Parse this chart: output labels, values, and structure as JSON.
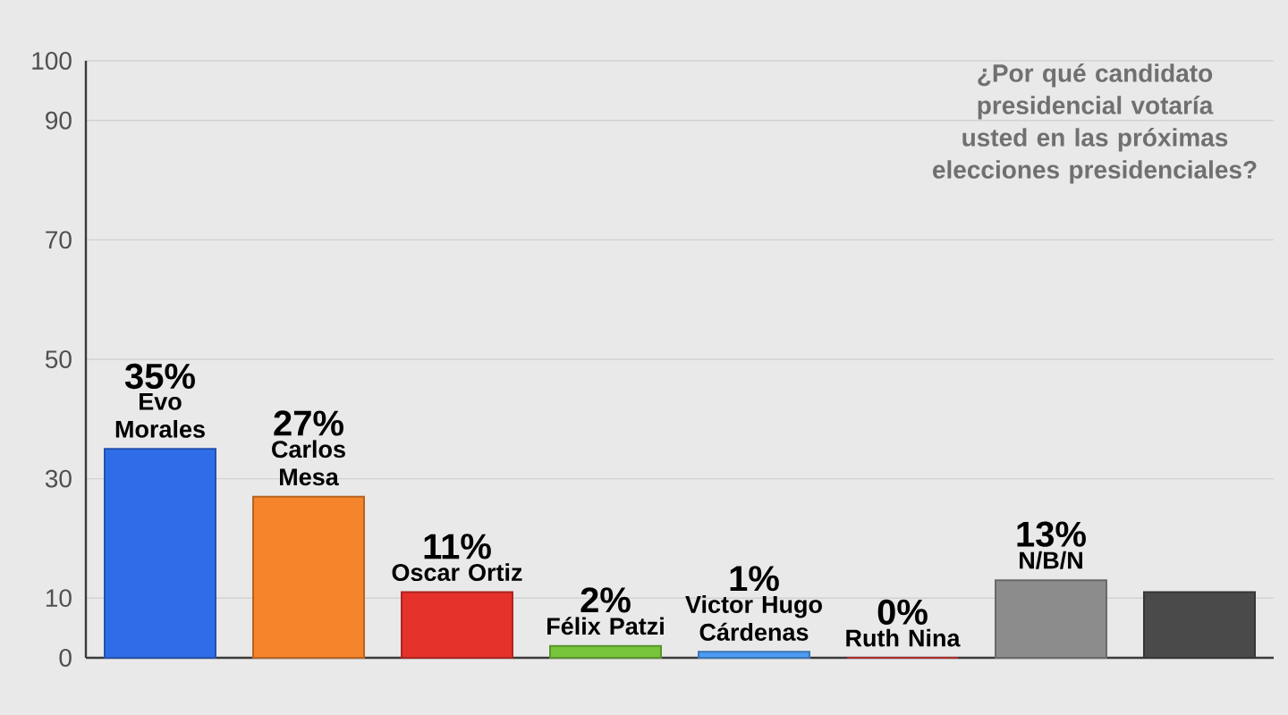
{
  "chart_data": {
    "type": "bar",
    "title": "¿Por qué candidato presidencial votaría usted en las próximas elecciones presidenciales?",
    "categories": [
      "Evo Morales",
      "Carlos Mesa",
      "Oscar Ortiz",
      "Félix Patzi",
      "Victor Hugo Cárdenas",
      "Ruth Nina",
      "N/B/N",
      null
    ],
    "values": [
      35,
      27,
      11,
      2,
      1,
      0,
      13,
      11
    ],
    "value_labels": [
      "35%",
      "27%",
      "11%",
      "2%",
      "1%",
      "0%",
      "13%",
      null
    ],
    "colors": [
      "#2f6de8",
      "#f5842a",
      "#e5322b",
      "#78c43a",
      "#4d9cf2",
      "#e83a3a",
      "#8c8c8c",
      "#4a4a4a"
    ],
    "ylim": [
      0,
      100
    ],
    "yticks": [
      0,
      10,
      30,
      50,
      70,
      90,
      100
    ],
    "grid": "y"
  }
}
